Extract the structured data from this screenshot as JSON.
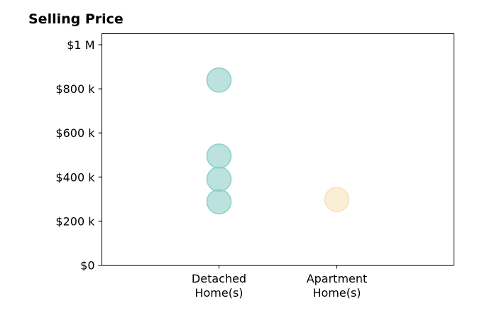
{
  "chart_data": {
    "type": "scatter",
    "title": "Selling Price",
    "xlabel": "",
    "ylabel": "",
    "categories": [
      [
        "Detached",
        "Home(s)"
      ],
      [
        "Apartment",
        "Home(s)"
      ]
    ],
    "ylim": [
      0,
      1050000
    ],
    "yticks": [
      0,
      200000,
      400000,
      600000,
      800000,
      1000000
    ],
    "ytick_labels": [
      "$0",
      "$200 k",
      "$400 k",
      "$600 k",
      "$800 k",
      "$1 M"
    ],
    "grid": false,
    "legend": "none",
    "series": [
      {
        "category": 0,
        "color": "#8ecfc8",
        "values": [
          840000,
          495000,
          390000,
          288000
        ]
      },
      {
        "category": 1,
        "color": "#f7e2b8",
        "values": [
          298000
        ]
      }
    ]
  }
}
